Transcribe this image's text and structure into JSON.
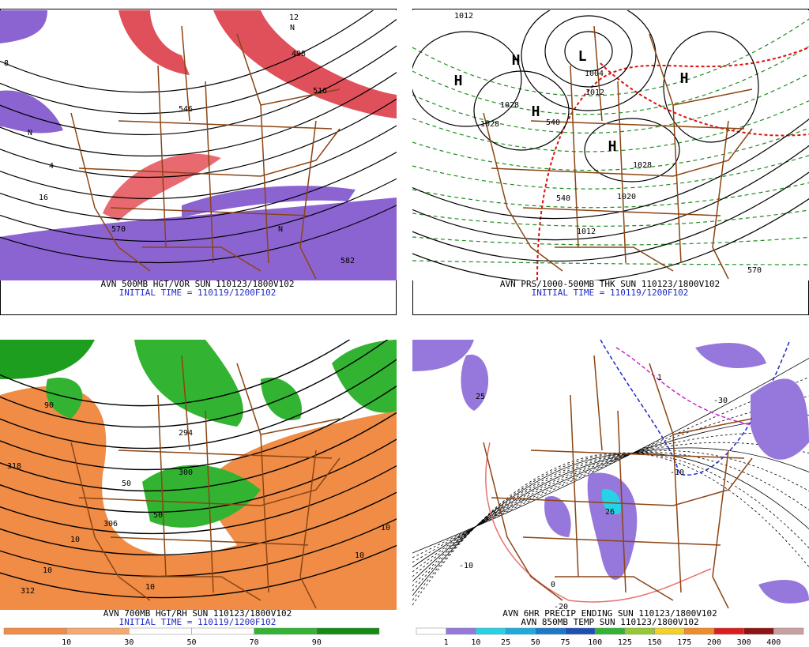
{
  "panels": [
    {
      "caption": [
        "AVN 500MB HGT/VOR SUN 110123/1800V102",
        "INITIAL TIME = 110119/1200F102"
      ],
      "labels": [
        "N",
        "498",
        "516",
        "546",
        "570",
        "582",
        "8",
        "16",
        "4",
        "N",
        "N",
        "12"
      ]
    },
    {
      "caption": [
        "AVN PRS/1000-500MB THK SUN 110123/1800V102",
        "INITIAL TIME = 110119/1200F102"
      ],
      "labels": [
        "1012",
        "H",
        "H",
        "L",
        "1004",
        "1012",
        "H",
        "1028",
        "1028",
        "H",
        "H",
        "1028",
        "1020",
        "540",
        "540",
        "1012",
        "570"
      ]
    },
    {
      "caption": [
        "AVN 700MB HGT/RH SUN 110123/1800V102",
        "INITIAL TIME = 110119/1200F102"
      ],
      "labels": [
        "318",
        "312",
        "306",
        "300",
        "294",
        "10",
        "10",
        "10",
        "10",
        "10",
        "50",
        "90",
        "50"
      ],
      "scale": [
        10,
        30,
        50,
        70,
        90
      ]
    },
    {
      "caption": [
        "AVN 6HR PRECIP  ENDING SUN 110123/1800V102",
        "AVN 850MB TEMP SUN 110123/1800V102"
      ],
      "labels": [
        "25",
        "26",
        "0",
        "-10",
        "-20",
        "-10",
        "-30",
        "1"
      ],
      "scale": [
        1,
        10,
        25,
        50,
        75,
        100,
        125,
        150,
        175,
        200,
        300,
        400
      ]
    }
  ]
}
